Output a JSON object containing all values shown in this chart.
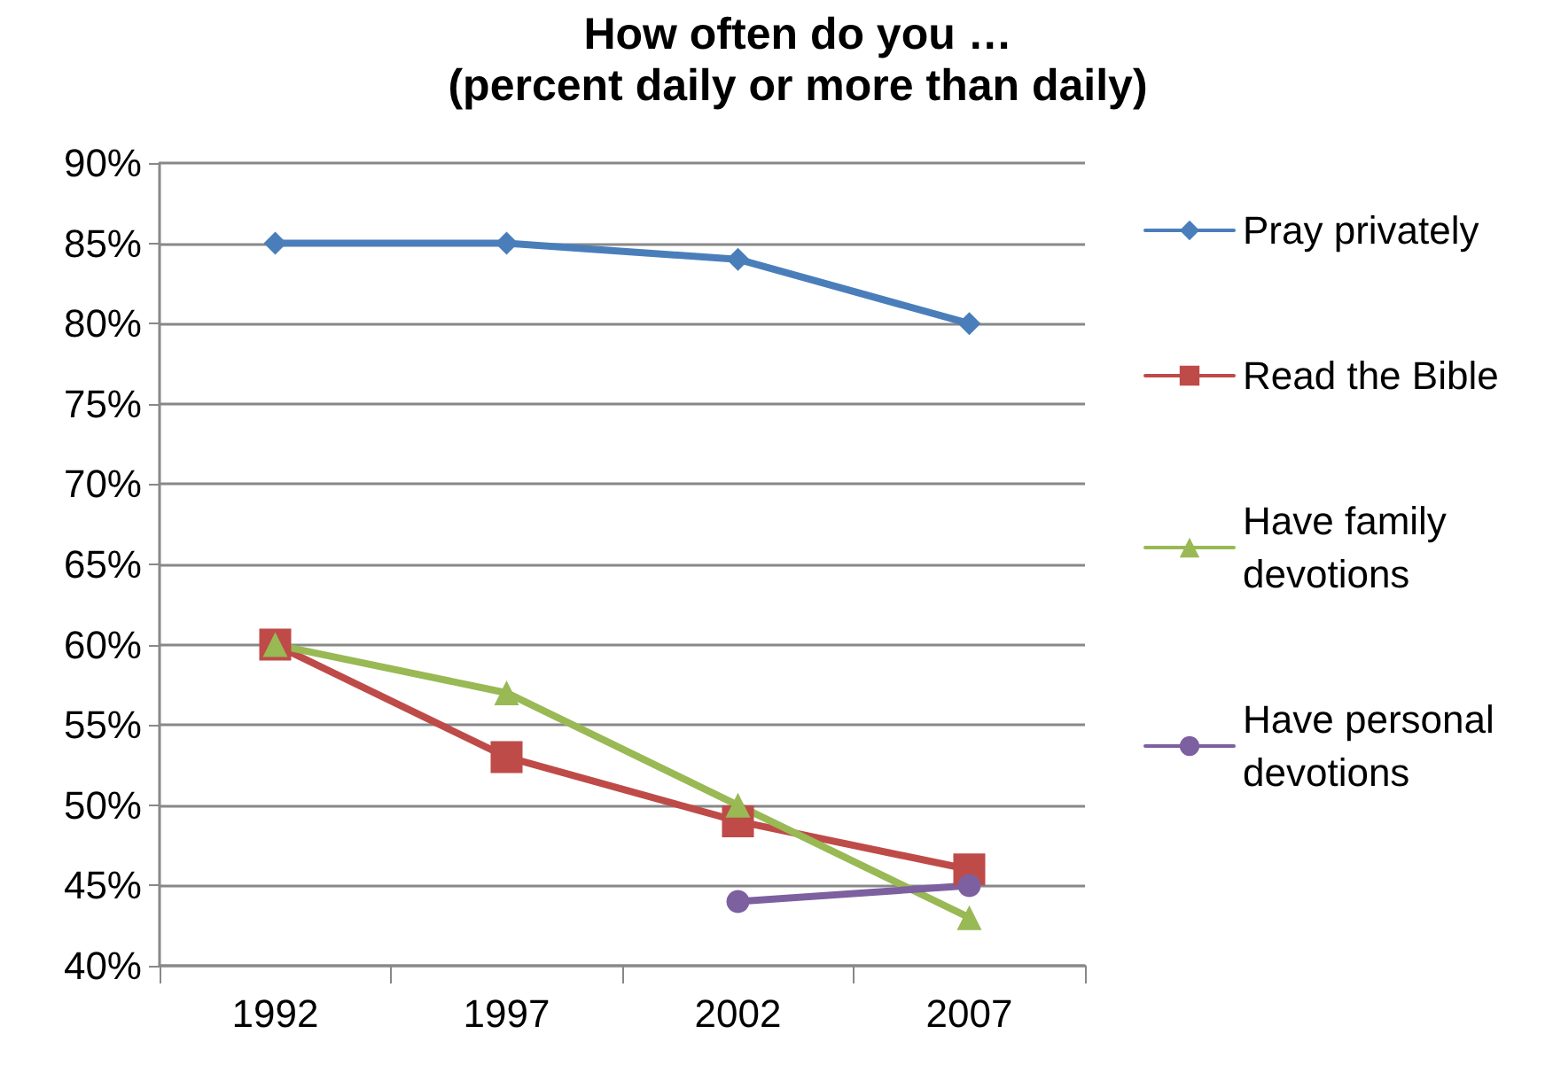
{
  "chart_data": {
    "type": "line",
    "title": "How often do you …",
    "subtitle": "(percent daily or more than daily)",
    "categories": [
      "1992",
      "1997",
      "2002",
      "2007"
    ],
    "series": [
      {
        "name": "Pray privately",
        "color": "#4a7ebb",
        "marker": "diamond",
        "values": [
          85,
          85,
          84,
          80
        ]
      },
      {
        "name": "Read the Bible",
        "color": "#be4b48",
        "marker": "square",
        "values": [
          60,
          53,
          49,
          46
        ]
      },
      {
        "name": "Have family devotions",
        "color": "#98b954",
        "marker": "triangle",
        "values": [
          60,
          57,
          50,
          43
        ]
      },
      {
        "name": "Have personal devotions",
        "color": "#7d60a0",
        "marker": "circle",
        "values": [
          null,
          null,
          44,
          45
        ]
      }
    ],
    "ylim": [
      40,
      90
    ],
    "yticks": [
      {
        "value": 40,
        "label": "40%"
      },
      {
        "value": 45,
        "label": "45%"
      },
      {
        "value": 50,
        "label": "50%"
      },
      {
        "value": 55,
        "label": "55%"
      },
      {
        "value": 60,
        "label": "60%"
      },
      {
        "value": 65,
        "label": "65%"
      },
      {
        "value": 70,
        "label": "70%"
      },
      {
        "value": 75,
        "label": "75%"
      },
      {
        "value": 80,
        "label": "80%"
      },
      {
        "value": 85,
        "label": "85%"
      },
      {
        "value": 90,
        "label": "90%"
      }
    ],
    "grid": "y",
    "legend": "right",
    "line_style": "solid"
  }
}
